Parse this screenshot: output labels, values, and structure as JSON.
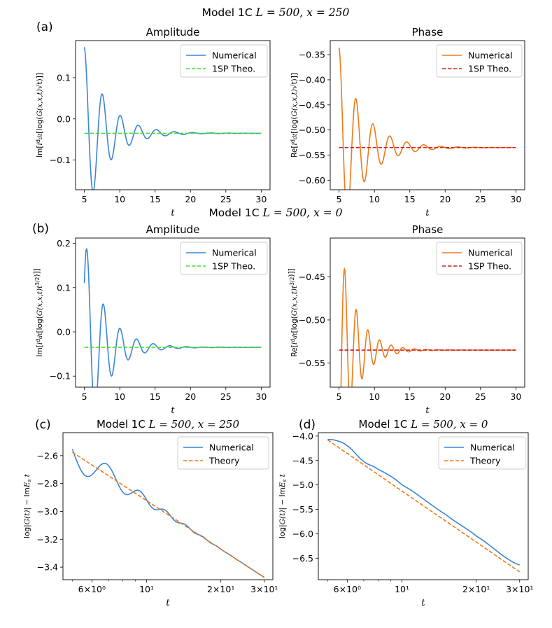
{
  "figure": {
    "suptitles": [
      {
        "id": "top",
        "prefix": "Model 1C ",
        "math": "L = 500, x = 250"
      },
      {
        "id": "mid",
        "prefix": "Model 1C ",
        "math": "L = 500, x = 0"
      }
    ],
    "panel_letters": [
      "(a)",
      "(b)",
      "(c)",
      "(d)"
    ]
  },
  "chart_data": [
    {
      "id": "a_amp",
      "type": "line",
      "panel": "(a)",
      "title": "Amplitude",
      "xlabel": "t",
      "ylabel": "Im[i d/dt[log(G(x,x,t)√t)]]",
      "xlim": [
        3.75,
        31.25
      ],
      "ylim": [
        -0.172,
        0.19
      ],
      "xticks": [
        5,
        10,
        15,
        20,
        25,
        30
      ],
      "xticklabels": [
        "5",
        "10",
        "15",
        "20",
        "25",
        "30"
      ],
      "yticks": [
        -0.1,
        0.0,
        0.1
      ],
      "yticklabels": [
        "−0.1",
        "0.0",
        "0.1"
      ],
      "legend": {
        "position": "top-right",
        "entries": [
          "Numerical",
          "1SP Theo."
        ]
      },
      "series": [
        {
          "name": "Numerical",
          "color": "#3a86d8",
          "style": "solid",
          "curve": {
            "kind": "damped",
            "start": 5,
            "end": 30,
            "base": -0.035,
            "amp": 0.209,
            "t0": 5,
            "period": 2.55,
            "decay": 0.31,
            "phase": 0
          }
        },
        {
          "name": "1SP Theo.",
          "color": "#44dd33",
          "style": "dashed",
          "x": [
            5,
            30
          ],
          "y": [
            -0.035,
            -0.035
          ]
        }
      ]
    },
    {
      "id": "a_phase",
      "type": "line",
      "title": "Phase",
      "xlabel": "t",
      "ylabel": "Re[i d/dt[log(G(x,x,t)√t)]]",
      "xlim": [
        3.75,
        31.25
      ],
      "ylim": [
        -0.619,
        -0.322
      ],
      "xticks": [
        5,
        10,
        15,
        20,
        25,
        30
      ],
      "xticklabels": [
        "5",
        "10",
        "15",
        "20",
        "25",
        "30"
      ],
      "yticks": [
        -0.6,
        -0.55,
        -0.5,
        -0.45,
        -0.4,
        -0.35
      ],
      "yticklabels": [
        "−0.60",
        "−0.55",
        "−0.50",
        "−0.45",
        "−0.40",
        "−0.35"
      ],
      "legend": {
        "position": "top-right",
        "entries": [
          "Numerical",
          "1SP Theo."
        ]
      },
      "series": [
        {
          "name": "Numerical",
          "color": "#f07a1a",
          "style": "solid",
          "curve": {
            "kind": "damped",
            "start": 5,
            "end": 30,
            "base": -0.535,
            "amp": 0.199,
            "t0": 5,
            "period": 2.4,
            "decay": 0.3,
            "phase": 0
          }
        },
        {
          "name": "1SP Theo.",
          "color": "#cc2222",
          "style": "dashed",
          "x": [
            5,
            30
          ],
          "y": [
            -0.535,
            -0.535
          ]
        }
      ]
    },
    {
      "id": "b_amp",
      "type": "line",
      "panel": "(b)",
      "title": "Amplitude",
      "xlabel": "t",
      "ylabel": "Im[i d/dt[log(G(x,x,t)t^(3/2))]]",
      "xlim": [
        3.75,
        31.25
      ],
      "ylim": [
        -0.125,
        0.212
      ],
      "xticks": [
        5,
        10,
        15,
        20,
        25,
        30
      ],
      "xticklabels": [
        "5",
        "10",
        "15",
        "20",
        "25",
        "30"
      ],
      "yticks": [
        -0.1,
        0.0,
        0.1,
        0.2
      ],
      "yticklabels": [
        "−0.1",
        "0.0",
        "0.1",
        "0.2"
      ],
      "legend": {
        "position": "top-right",
        "entries": [
          "Numerical",
          "1SP Theo."
        ]
      },
      "series": [
        {
          "name": "Numerical",
          "color": "#3a86d8",
          "style": "solid",
          "curve": {
            "kind": "damped",
            "start": 5,
            "end": 30,
            "base": -0.035,
            "amp": 0.25,
            "t0": 5,
            "period": 2.35,
            "decay": 0.35,
            "phase": -0.95
          }
        },
        {
          "name": "1SP Theo.",
          "color": "#44dd33",
          "style": "dashed",
          "x": [
            5,
            30
          ],
          "y": [
            -0.035,
            -0.035
          ]
        }
      ]
    },
    {
      "id": "b_phase",
      "type": "line",
      "title": "Phase",
      "xlabel": "t",
      "ylabel": "Re[i d/dt[log(G(x,x,t)t^(3/2))]]",
      "xlim": [
        3.75,
        31.25
      ],
      "ylim": [
        -0.578,
        -0.405
      ],
      "xticks": [
        5,
        10,
        15,
        20,
        25,
        30
      ],
      "xticklabels": [
        "5",
        "10",
        "15",
        "20",
        "25",
        "30"
      ],
      "yticks": [
        -0.55,
        -0.5,
        -0.45
      ],
      "yticklabels": [
        "−0.55",
        "−0.50",
        "−0.45"
      ],
      "legend": {
        "position": "top-right",
        "entries": [
          "Numerical",
          "1SP Theo."
        ]
      },
      "series": [
        {
          "name": "Numerical",
          "color": "#f07a1a",
          "style": "solid",
          "curve": {
            "kind": "damped",
            "start": 5,
            "end": 30,
            "base": -0.535,
            "amp": 0.13,
            "t0": 5,
            "period": 1.65,
            "decay": 0.42,
            "phase": 3.3
          }
        },
        {
          "name": "1SP Theo.",
          "color": "#cc2222",
          "style": "dashed",
          "x": [
            5,
            30
          ],
          "y": [
            -0.535,
            -0.535
          ]
        }
      ]
    },
    {
      "id": "c",
      "type": "line",
      "panel": "(c)",
      "title_prefix": "Model 1C ",
      "title_math": "L = 500, x = 250",
      "xscale": "log",
      "xlabel": "t",
      "ylabel": "log|G(t)| − ImE_s t",
      "xlim": [
        4.58,
        32.5
      ],
      "ylim": [
        -3.49,
        -2.435
      ],
      "xticks": [
        6,
        10,
        20,
        30
      ],
      "xticklabels": [
        "6×10⁰",
        "10¹",
        "2×10¹",
        "3×10¹"
      ],
      "yticks": [
        -3.4,
        -3.2,
        -3.0,
        -2.8,
        -2.6
      ],
      "yticklabels": [
        "−3.4",
        "−3.2",
        "−3.0",
        "−2.8",
        "−2.6"
      ],
      "legend": {
        "position": "top-right",
        "entries": [
          "Numerical",
          "Theory"
        ]
      },
      "series": [
        {
          "name": "Numerical",
          "color": "#3a86d8",
          "style": "solid",
          "curve": {
            "kind": "logosc",
            "start": 5,
            "end": 30,
            "a": -2.575,
            "b": -0.5016,
            "amp": 0.13,
            "t0": 5,
            "period": 2.5,
            "decay": 0.28,
            "phase": 1.4
          }
        },
        {
          "name": "Theory",
          "color": "#f07a1a",
          "style": "dashed",
          "x": [
            5,
            30
          ],
          "y": [
            -2.575,
            -3.474
          ]
        }
      ]
    },
    {
      "id": "d",
      "type": "line",
      "panel": "(d)",
      "title_prefix": "Model 1C ",
      "title_math": "L = 500, x = 0",
      "xscale": "log",
      "xlabel": "t",
      "ylabel": "log|G(t)| − ImE_s t",
      "xlim": [
        4.58,
        32.5
      ],
      "ylim": [
        -6.94,
        -3.93
      ],
      "xticks": [
        6,
        10,
        20,
        30
      ],
      "xticklabels": [
        "6×10⁰",
        "10¹",
        "2×10¹",
        "3×10¹"
      ],
      "yticks": [
        -6.5,
        -6.0,
        -5.5,
        -5.0,
        -4.5,
        -4.0
      ],
      "yticklabels": [
        "−6.5",
        "−6.0",
        "−5.5",
        "−5.0",
        "−4.5",
        "−4.0"
      ],
      "legend": {
        "position": "top-right",
        "entries": [
          "Numerical",
          "Theory"
        ]
      },
      "series": [
        {
          "name": "Numerical",
          "color": "#3a86d8",
          "style": "solid",
          "curve": {
            "kind": "logpts",
            "logx": [
              1.609,
              1.686,
              1.792,
              1.946,
              2.079,
              2.303,
              2.708,
              3.0,
              3.401
            ],
            "y": [
              -4.07,
              -4.09,
              -4.2,
              -4.52,
              -4.68,
              -5.0,
              -5.6,
              -6.05,
              -6.64
            ]
          }
        },
        {
          "name": "Theory",
          "color": "#f07a1a",
          "style": "dashed",
          "x": [
            5,
            30
          ],
          "y": [
            -4.08,
            -6.78
          ]
        }
      ]
    }
  ]
}
